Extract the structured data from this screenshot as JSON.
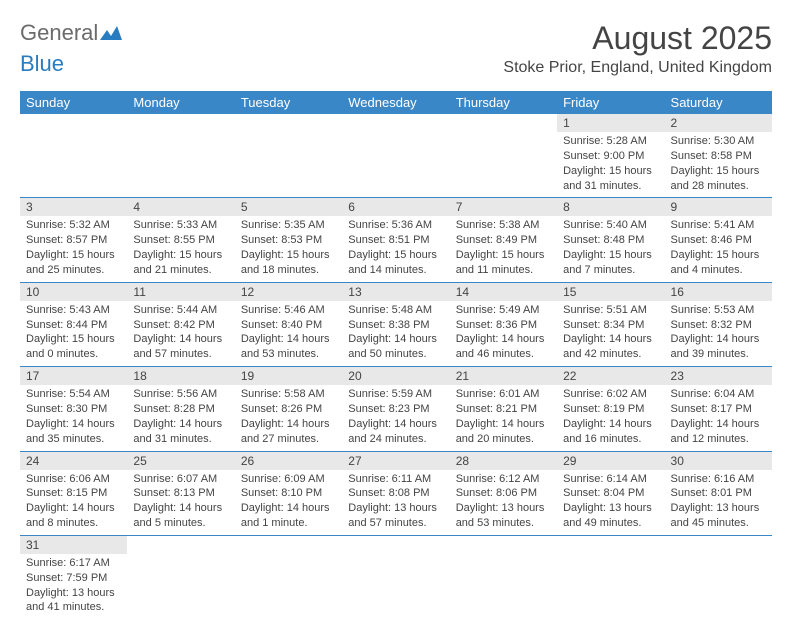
{
  "logo": {
    "text1": "General",
    "text2": "Blue"
  },
  "title": "August 2025",
  "location": "Stoke Prior, England, United Kingdom",
  "colors": {
    "header_bg": "#3a87c7",
    "header_fg": "#ffffff",
    "daynum_bg": "#e8e8e8",
    "row_divider": "#3a87c7"
  },
  "weekdays": [
    "Sunday",
    "Monday",
    "Tuesday",
    "Wednesday",
    "Thursday",
    "Friday",
    "Saturday"
  ],
  "weeks": [
    [
      {
        "empty": true
      },
      {
        "empty": true
      },
      {
        "empty": true
      },
      {
        "empty": true
      },
      {
        "empty": true
      },
      {
        "n": "1",
        "sr": "Sunrise: 5:28 AM",
        "ss": "Sunset: 9:00 PM",
        "dl": "Daylight: 15 hours and 31 minutes."
      },
      {
        "n": "2",
        "sr": "Sunrise: 5:30 AM",
        "ss": "Sunset: 8:58 PM",
        "dl": "Daylight: 15 hours and 28 minutes."
      }
    ],
    [
      {
        "n": "3",
        "sr": "Sunrise: 5:32 AM",
        "ss": "Sunset: 8:57 PM",
        "dl": "Daylight: 15 hours and 25 minutes."
      },
      {
        "n": "4",
        "sr": "Sunrise: 5:33 AM",
        "ss": "Sunset: 8:55 PM",
        "dl": "Daylight: 15 hours and 21 minutes."
      },
      {
        "n": "5",
        "sr": "Sunrise: 5:35 AM",
        "ss": "Sunset: 8:53 PM",
        "dl": "Daylight: 15 hours and 18 minutes."
      },
      {
        "n": "6",
        "sr": "Sunrise: 5:36 AM",
        "ss": "Sunset: 8:51 PM",
        "dl": "Daylight: 15 hours and 14 minutes."
      },
      {
        "n": "7",
        "sr": "Sunrise: 5:38 AM",
        "ss": "Sunset: 8:49 PM",
        "dl": "Daylight: 15 hours and 11 minutes."
      },
      {
        "n": "8",
        "sr": "Sunrise: 5:40 AM",
        "ss": "Sunset: 8:48 PM",
        "dl": "Daylight: 15 hours and 7 minutes."
      },
      {
        "n": "9",
        "sr": "Sunrise: 5:41 AM",
        "ss": "Sunset: 8:46 PM",
        "dl": "Daylight: 15 hours and 4 minutes."
      }
    ],
    [
      {
        "n": "10",
        "sr": "Sunrise: 5:43 AM",
        "ss": "Sunset: 8:44 PM",
        "dl": "Daylight: 15 hours and 0 minutes."
      },
      {
        "n": "11",
        "sr": "Sunrise: 5:44 AM",
        "ss": "Sunset: 8:42 PM",
        "dl": "Daylight: 14 hours and 57 minutes."
      },
      {
        "n": "12",
        "sr": "Sunrise: 5:46 AM",
        "ss": "Sunset: 8:40 PM",
        "dl": "Daylight: 14 hours and 53 minutes."
      },
      {
        "n": "13",
        "sr": "Sunrise: 5:48 AM",
        "ss": "Sunset: 8:38 PM",
        "dl": "Daylight: 14 hours and 50 minutes."
      },
      {
        "n": "14",
        "sr": "Sunrise: 5:49 AM",
        "ss": "Sunset: 8:36 PM",
        "dl": "Daylight: 14 hours and 46 minutes."
      },
      {
        "n": "15",
        "sr": "Sunrise: 5:51 AM",
        "ss": "Sunset: 8:34 PM",
        "dl": "Daylight: 14 hours and 42 minutes."
      },
      {
        "n": "16",
        "sr": "Sunrise: 5:53 AM",
        "ss": "Sunset: 8:32 PM",
        "dl": "Daylight: 14 hours and 39 minutes."
      }
    ],
    [
      {
        "n": "17",
        "sr": "Sunrise: 5:54 AM",
        "ss": "Sunset: 8:30 PM",
        "dl": "Daylight: 14 hours and 35 minutes."
      },
      {
        "n": "18",
        "sr": "Sunrise: 5:56 AM",
        "ss": "Sunset: 8:28 PM",
        "dl": "Daylight: 14 hours and 31 minutes."
      },
      {
        "n": "19",
        "sr": "Sunrise: 5:58 AM",
        "ss": "Sunset: 8:26 PM",
        "dl": "Daylight: 14 hours and 27 minutes."
      },
      {
        "n": "20",
        "sr": "Sunrise: 5:59 AM",
        "ss": "Sunset: 8:23 PM",
        "dl": "Daylight: 14 hours and 24 minutes."
      },
      {
        "n": "21",
        "sr": "Sunrise: 6:01 AM",
        "ss": "Sunset: 8:21 PM",
        "dl": "Daylight: 14 hours and 20 minutes."
      },
      {
        "n": "22",
        "sr": "Sunrise: 6:02 AM",
        "ss": "Sunset: 8:19 PM",
        "dl": "Daylight: 14 hours and 16 minutes."
      },
      {
        "n": "23",
        "sr": "Sunrise: 6:04 AM",
        "ss": "Sunset: 8:17 PM",
        "dl": "Daylight: 14 hours and 12 minutes."
      }
    ],
    [
      {
        "n": "24",
        "sr": "Sunrise: 6:06 AM",
        "ss": "Sunset: 8:15 PM",
        "dl": "Daylight: 14 hours and 8 minutes."
      },
      {
        "n": "25",
        "sr": "Sunrise: 6:07 AM",
        "ss": "Sunset: 8:13 PM",
        "dl": "Daylight: 14 hours and 5 minutes."
      },
      {
        "n": "26",
        "sr": "Sunrise: 6:09 AM",
        "ss": "Sunset: 8:10 PM",
        "dl": "Daylight: 14 hours and 1 minute."
      },
      {
        "n": "27",
        "sr": "Sunrise: 6:11 AM",
        "ss": "Sunset: 8:08 PM",
        "dl": "Daylight: 13 hours and 57 minutes."
      },
      {
        "n": "28",
        "sr": "Sunrise: 6:12 AM",
        "ss": "Sunset: 8:06 PM",
        "dl": "Daylight: 13 hours and 53 minutes."
      },
      {
        "n": "29",
        "sr": "Sunrise: 6:14 AM",
        "ss": "Sunset: 8:04 PM",
        "dl": "Daylight: 13 hours and 49 minutes."
      },
      {
        "n": "30",
        "sr": "Sunrise: 6:16 AM",
        "ss": "Sunset: 8:01 PM",
        "dl": "Daylight: 13 hours and 45 minutes."
      }
    ],
    [
      {
        "n": "31",
        "sr": "Sunrise: 6:17 AM",
        "ss": "Sunset: 7:59 PM",
        "dl": "Daylight: 13 hours and 41 minutes."
      },
      {
        "empty": true
      },
      {
        "empty": true
      },
      {
        "empty": true
      },
      {
        "empty": true
      },
      {
        "empty": true
      },
      {
        "empty": true
      }
    ]
  ]
}
